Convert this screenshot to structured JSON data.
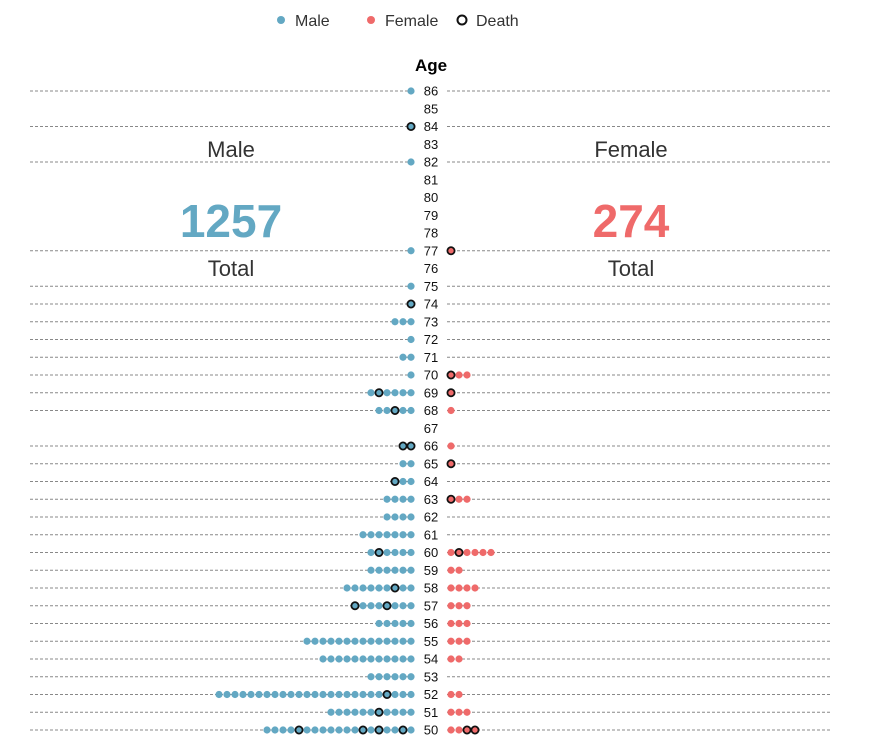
{
  "colors": {
    "male": "#63a8c3",
    "female": "#ef6a6a",
    "death_stroke": "#111111"
  },
  "legend": [
    {
      "label": "Male",
      "kind": "male"
    },
    {
      "label": "Female",
      "kind": "female"
    },
    {
      "label": "Death",
      "kind": "death"
    }
  ],
  "male_panel": {
    "title": "Male",
    "total": "1257",
    "total_label": "Total"
  },
  "female_panel": {
    "title": "Female",
    "total": "274",
    "total_label": "Total"
  },
  "chart_data": {
    "type": "scatter",
    "subtype": "dot-population-pyramid",
    "axis_title": "Age",
    "age_range": [
      50,
      86
    ],
    "gridline_ages": [
      86,
      84,
      82,
      77,
      75,
      74,
      73,
      72,
      71,
      70,
      69,
      68,
      66,
      65,
      64,
      63,
      62,
      61,
      60,
      59,
      58,
      57,
      56,
      55,
      54,
      53,
      52,
      51,
      50
    ],
    "rows": [
      {
        "age": 86,
        "male": 1,
        "male_deaths": [],
        "female": 0,
        "female_deaths": []
      },
      {
        "age": 85,
        "male": 0,
        "male_deaths": [],
        "female": 0,
        "female_deaths": []
      },
      {
        "age": 84,
        "male": 1,
        "male_deaths": [
          1
        ],
        "female": 0,
        "female_deaths": []
      },
      {
        "age": 83,
        "male": 0,
        "male_deaths": [],
        "female": 0,
        "female_deaths": []
      },
      {
        "age": 82,
        "male": 1,
        "male_deaths": [],
        "female": 0,
        "female_deaths": []
      },
      {
        "age": 81,
        "male": 0,
        "male_deaths": [],
        "female": 0,
        "female_deaths": []
      },
      {
        "age": 80,
        "male": 0,
        "male_deaths": [],
        "female": 0,
        "female_deaths": []
      },
      {
        "age": 79,
        "male": 0,
        "male_deaths": [],
        "female": 0,
        "female_deaths": []
      },
      {
        "age": 78,
        "male": 0,
        "male_deaths": [],
        "female": 0,
        "female_deaths": []
      },
      {
        "age": 77,
        "male": 1,
        "male_deaths": [],
        "female": 1,
        "female_deaths": [
          1
        ]
      },
      {
        "age": 76,
        "male": 0,
        "male_deaths": [],
        "female": 0,
        "female_deaths": []
      },
      {
        "age": 75,
        "male": 1,
        "male_deaths": [],
        "female": 0,
        "female_deaths": []
      },
      {
        "age": 74,
        "male": 1,
        "male_deaths": [
          1
        ],
        "female": 0,
        "female_deaths": []
      },
      {
        "age": 73,
        "male": 3,
        "male_deaths": [],
        "female": 0,
        "female_deaths": []
      },
      {
        "age": 72,
        "male": 1,
        "male_deaths": [],
        "female": 0,
        "female_deaths": []
      },
      {
        "age": 71,
        "male": 2,
        "male_deaths": [],
        "female": 0,
        "female_deaths": []
      },
      {
        "age": 70,
        "male": 1,
        "male_deaths": [],
        "female": 3,
        "female_deaths": [
          1
        ]
      },
      {
        "age": 69,
        "male": 6,
        "male_deaths": [
          5
        ],
        "female": 1,
        "female_deaths": [
          1
        ]
      },
      {
        "age": 68,
        "male": 5,
        "male_deaths": [
          3
        ],
        "female": 1,
        "female_deaths": []
      },
      {
        "age": 67,
        "male": 0,
        "male_deaths": [],
        "female": 0,
        "female_deaths": []
      },
      {
        "age": 66,
        "male": 2,
        "male_deaths": [
          1,
          2
        ],
        "female": 1,
        "female_deaths": []
      },
      {
        "age": 65,
        "male": 2,
        "male_deaths": [],
        "female": 1,
        "female_deaths": [
          1
        ]
      },
      {
        "age": 64,
        "male": 3,
        "male_deaths": [
          3
        ],
        "female": 0,
        "female_deaths": []
      },
      {
        "age": 63,
        "male": 4,
        "male_deaths": [],
        "female": 3,
        "female_deaths": [
          1
        ]
      },
      {
        "age": 62,
        "male": 4,
        "male_deaths": [],
        "female": 0,
        "female_deaths": []
      },
      {
        "age": 61,
        "male": 7,
        "male_deaths": [],
        "female": 0,
        "female_deaths": []
      },
      {
        "age": 60,
        "male": 6,
        "male_deaths": [
          5
        ],
        "female": 6,
        "female_deaths": [
          2
        ]
      },
      {
        "age": 59,
        "male": 6,
        "male_deaths": [],
        "female": 2,
        "female_deaths": []
      },
      {
        "age": 58,
        "male": 9,
        "male_deaths": [
          3
        ],
        "female": 4,
        "female_deaths": []
      },
      {
        "age": 57,
        "male": 8,
        "male_deaths": [
          4,
          8
        ],
        "female": 3,
        "female_deaths": []
      },
      {
        "age": 56,
        "male": 5,
        "male_deaths": [],
        "female": 3,
        "female_deaths": []
      },
      {
        "age": 55,
        "male": 14,
        "male_deaths": [],
        "female": 3,
        "female_deaths": []
      },
      {
        "age": 54,
        "male": 12,
        "male_deaths": [],
        "female": 2,
        "female_deaths": []
      },
      {
        "age": 53,
        "male": 6,
        "male_deaths": [],
        "female": 0,
        "female_deaths": []
      },
      {
        "age": 52,
        "male": 25,
        "male_deaths": [
          4
        ],
        "female": 2,
        "female_deaths": []
      },
      {
        "age": 51,
        "male": 11,
        "male_deaths": [
          5
        ],
        "female": 3,
        "female_deaths": []
      },
      {
        "age": 50,
        "male": 19,
        "male_deaths": [
          2,
          5,
          7,
          15
        ],
        "female": 4,
        "female_deaths": [
          3,
          4
        ]
      }
    ]
  }
}
